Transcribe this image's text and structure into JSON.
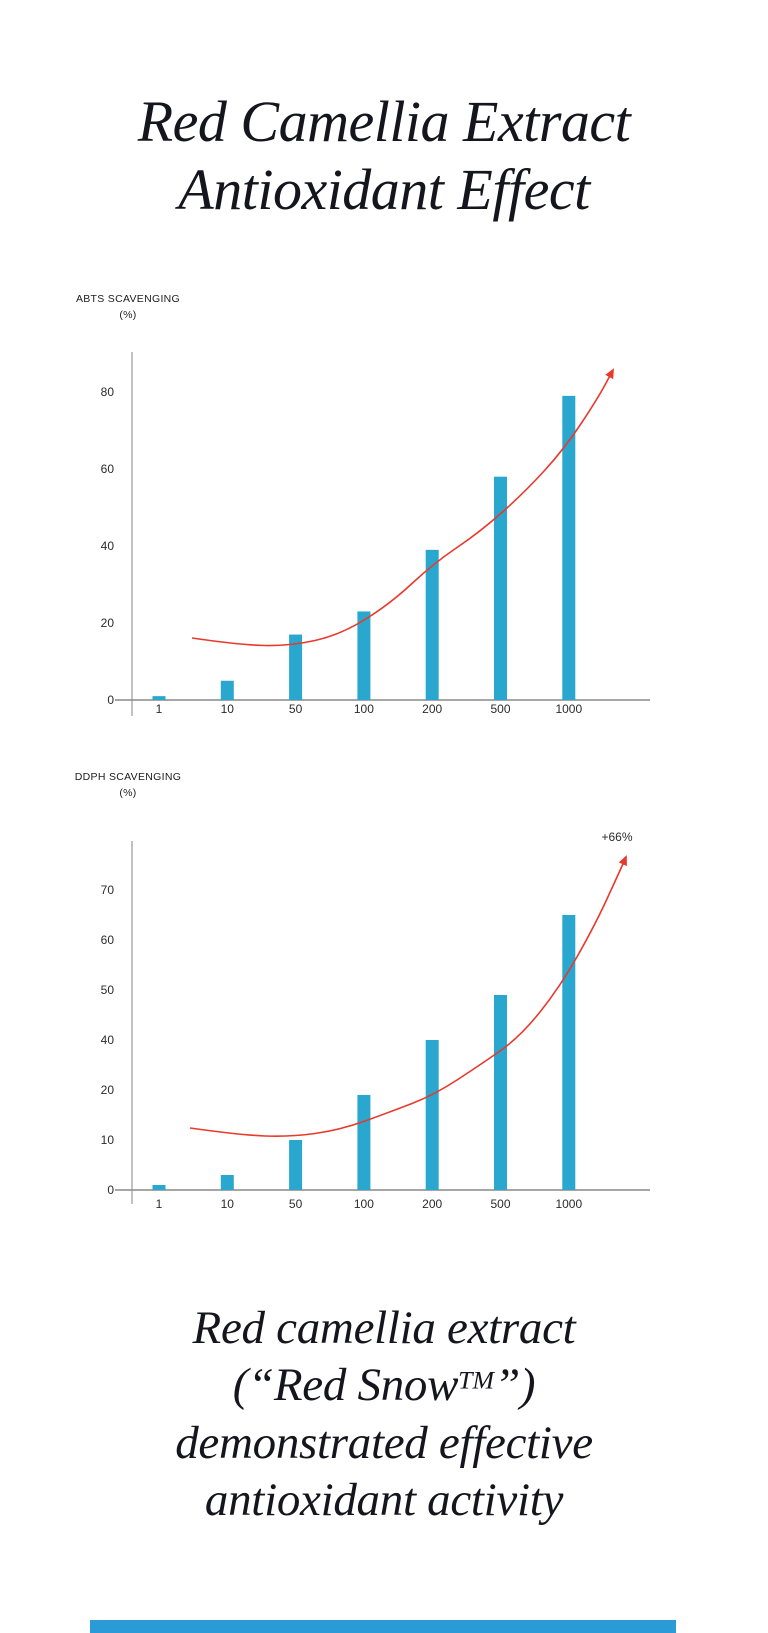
{
  "title": {
    "line1": "Red Camellia Extract",
    "line2": "Antioxidant Effect"
  },
  "footer": {
    "line1": "Red camellia extract",
    "line2_prefix": "(“Red Snow",
    "line2_tm": "TM",
    "line2_suffix": "”)",
    "line3": "demonstrated effective",
    "line4": "antioxidant activity"
  },
  "colors": {
    "bar": "#2AA7CE",
    "trend_arrow": "#E8392C",
    "axis": "#999999",
    "tick_text": "#2B2B2B",
    "title_text": "#15151D",
    "bottom_block": "#2B9BD7",
    "background": "#FFFFFF"
  },
  "chart_data": [
    {
      "type": "bar",
      "title": "ABTS SCAVENGING",
      "unit": "(%)",
      "ylabel": "ABTS scavenging (%)",
      "xlabel": "",
      "categories": [
        "1",
        "10",
        "50",
        "100",
        "200",
        "500",
        "1000"
      ],
      "values": [
        1,
        5,
        17,
        23,
        39,
        58,
        79
      ],
      "ytick_labels": [
        "0",
        "20",
        "40",
        "60",
        "80"
      ],
      "ylim": [
        0,
        90
      ],
      "grid": false,
      "legend": null,
      "annotation": "",
      "trend": "red exponential rising curve ending in arrow"
    },
    {
      "type": "bar",
      "title": "DDPH SCAVENGING",
      "unit": "(%)",
      "ylabel": "DDPH scavenging (%)",
      "xlabel": "",
      "categories": [
        "1",
        "10",
        "50",
        "100",
        "200",
        "500",
        "1000"
      ],
      "values": [
        1,
        3,
        10,
        19,
        40,
        49,
        65
      ],
      "ytick_labels": [
        "0",
        "10",
        "20",
        "40",
        "50",
        "60",
        "70"
      ],
      "ylim": [
        0,
        78
      ],
      "grid": false,
      "legend": null,
      "annotation": "+66%",
      "trend": "red exponential rising curve ending in arrow"
    }
  ]
}
